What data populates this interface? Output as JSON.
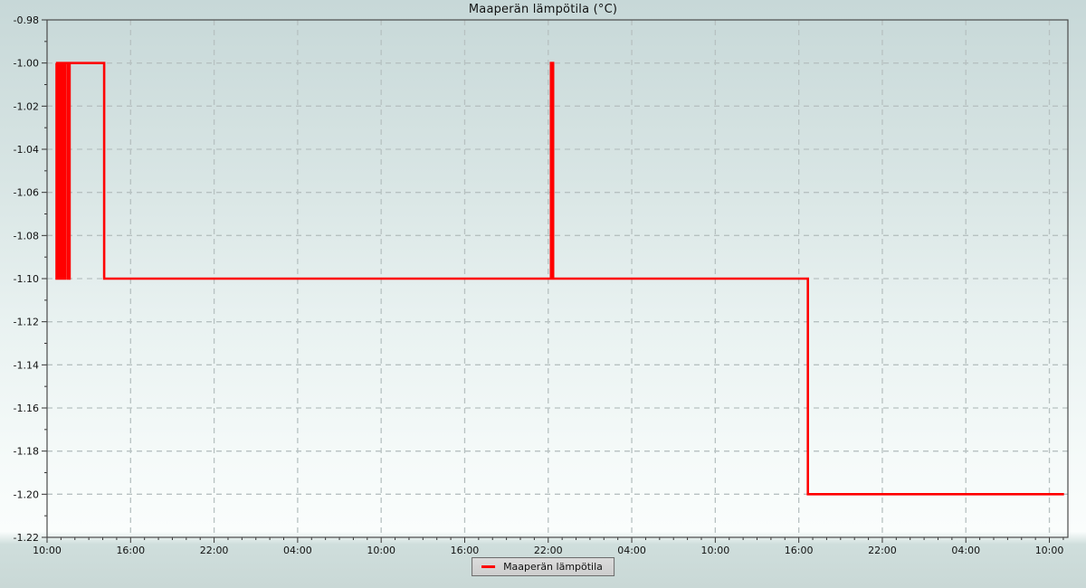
{
  "title": "Maaperän lämpötila (°C)",
  "legend": {
    "label": "Maaperän lämpötila"
  },
  "colors": {
    "line": "#ff0000",
    "grid": "#b7c1c1",
    "axis": "#4a4a4a",
    "tick": "#333333",
    "text": "#111111"
  },
  "chart_data": {
    "type": "line",
    "step": "after",
    "title": "Maaperän lämpötila (°C)",
    "series_name": "Maaperän lämpötila",
    "x_unit": "hours since Day 1 10:00",
    "xlim": [
      0,
      73.33
    ],
    "ylim": [
      -1.22,
      -0.98
    ],
    "x_tick_hours": [
      0,
      6,
      12,
      18,
      24,
      30,
      36,
      42,
      48,
      54,
      60,
      66,
      72
    ],
    "x_tick_labels": [
      "10:00",
      "16:00",
      "22:00",
      "04:00",
      "10:00",
      "16:00",
      "22:00",
      "04:00",
      "10:00",
      "16:00",
      "22:00",
      "04:00",
      "10:00"
    ],
    "x_minor_step_hours": 1,
    "y_tick_values": [
      -0.98,
      -1.0,
      -1.02,
      -1.04,
      -1.06,
      -1.08,
      -1.1,
      -1.12,
      -1.14,
      -1.16,
      -1.18,
      -1.2,
      -1.22
    ],
    "y_tick_labels": [
      "-0.98",
      "-1.00",
      "-1.02",
      "-1.04",
      "-1.06",
      "-1.08",
      "-1.10",
      "-1.12",
      "-1.14",
      "-1.16",
      "-1.18",
      "-1.20",
      "-1.22"
    ],
    "y_minor_step": 0.01,
    "grid": true,
    "legend_position": "bottom-center",
    "points": [
      [
        0.65,
        -1.0
      ],
      [
        0.68,
        -1.1
      ],
      [
        0.72,
        -1.0
      ],
      [
        0.76,
        -1.1
      ],
      [
        0.8,
        -1.0
      ],
      [
        0.84,
        -1.1
      ],
      [
        0.88,
        -1.0
      ],
      [
        0.92,
        -1.1
      ],
      [
        0.96,
        -1.0
      ],
      [
        1.0,
        -1.1
      ],
      [
        1.04,
        -1.0
      ],
      [
        1.08,
        -1.1
      ],
      [
        1.12,
        -1.0
      ],
      [
        1.16,
        -1.1
      ],
      [
        1.2,
        -1.0
      ],
      [
        1.24,
        -1.1
      ],
      [
        1.28,
        -1.0
      ],
      [
        1.46,
        -1.1
      ],
      [
        1.62,
        -1.0
      ],
      [
        4.1,
        -1.1
      ],
      [
        36.2,
        -1.0
      ],
      [
        36.35,
        -1.1
      ],
      [
        54.65,
        -1.2
      ],
      [
        73.05,
        -1.2
      ]
    ]
  }
}
